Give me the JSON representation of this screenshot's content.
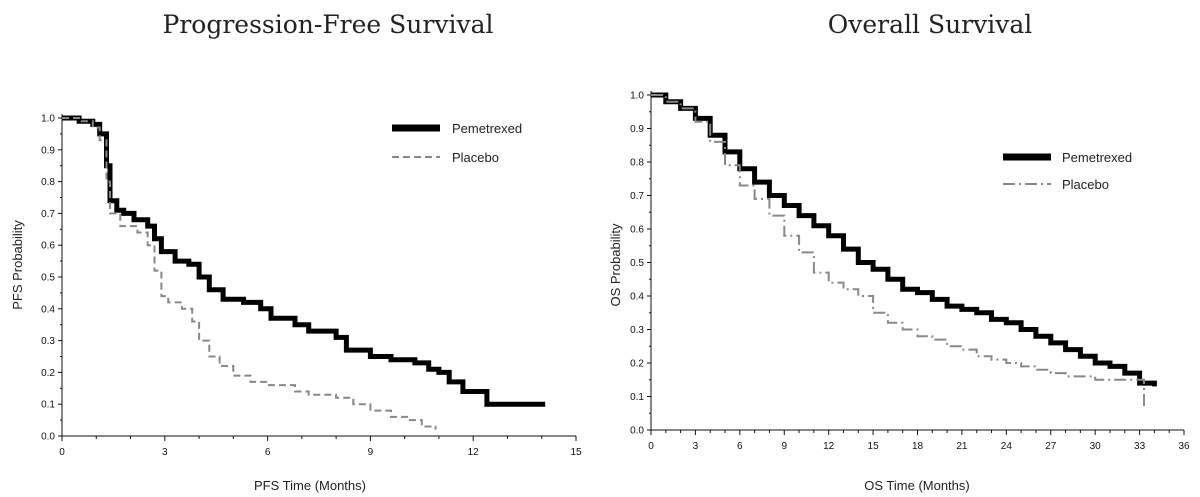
{
  "chart_data": [
    {
      "type": "line",
      "title": "Progression-Free Survival",
      "xlabel": "PFS Time (Months)",
      "ylabel": "PFS Probability",
      "xlim": [
        0,
        15
      ],
      "ylim": [
        0,
        1.0
      ],
      "xticks": [
        "0",
        "3",
        "6",
        "9",
        "12",
        "15"
      ],
      "yticks": [
        "0.0",
        "0.1",
        "0.2",
        "0.3",
        "0.4",
        "0.5",
        "0.6",
        "0.7",
        "0.8",
        "0.9",
        "1.0"
      ],
      "grid": false,
      "legend_position": "top-right",
      "series": [
        {
          "name": "Pemetrexed",
          "color": "#000000",
          "style": "solid-thick",
          "x": [
            0,
            0.5,
            0.9,
            1.1,
            1.3,
            1.4,
            1.6,
            1.8,
            2.1,
            2.5,
            2.7,
            2.9,
            3.3,
            3.7,
            4.0,
            4.3,
            4.7,
            5.3,
            5.8,
            6.1,
            6.8,
            7.2,
            8.0,
            8.3,
            9.0,
            9.6,
            10.3,
            10.7,
            11.0,
            11.3,
            11.7,
            12.4,
            14.1
          ],
          "y": [
            1.0,
            0.99,
            0.98,
            0.95,
            0.85,
            0.74,
            0.71,
            0.7,
            0.68,
            0.66,
            0.62,
            0.58,
            0.55,
            0.54,
            0.5,
            0.46,
            0.43,
            0.42,
            0.4,
            0.37,
            0.35,
            0.33,
            0.31,
            0.27,
            0.25,
            0.24,
            0.23,
            0.21,
            0.2,
            0.17,
            0.14,
            0.1,
            0.1
          ]
        },
        {
          "name": "Placebo",
          "color": "#888888",
          "style": "dashed",
          "x": [
            0,
            0.5,
            0.9,
            1.1,
            1.3,
            1.4,
            1.7,
            2.2,
            2.5,
            2.7,
            2.9,
            3.1,
            3.5,
            3.8,
            4.0,
            4.3,
            4.6,
            5.0,
            5.5,
            6.0,
            6.8,
            7.2,
            8.0,
            8.5,
            9.0,
            9.6,
            10.1,
            10.5,
            10.9
          ],
          "y": [
            1.0,
            0.99,
            0.97,
            0.93,
            0.8,
            0.7,
            0.66,
            0.64,
            0.6,
            0.52,
            0.44,
            0.42,
            0.4,
            0.36,
            0.3,
            0.25,
            0.22,
            0.19,
            0.17,
            0.16,
            0.14,
            0.13,
            0.12,
            0.1,
            0.08,
            0.06,
            0.05,
            0.03,
            0.02
          ]
        }
      ]
    },
    {
      "type": "line",
      "title": "Overall Survival",
      "xlabel": "OS Time (Months)",
      "ylabel": "OS Probability",
      "xlim": [
        0,
        36
      ],
      "ylim": [
        0,
        1.0
      ],
      "xticks": [
        "0",
        "3",
        "6",
        "9",
        "12",
        "15",
        "18",
        "21",
        "24",
        "27",
        "30",
        "33",
        "36"
      ],
      "yticks": [
        "0.0",
        "0.1",
        "0.2",
        "0.3",
        "0.4",
        "0.5",
        "0.6",
        "0.7",
        "0.8",
        "0.9",
        "1.0"
      ],
      "grid": false,
      "legend_position": "top-right",
      "series": [
        {
          "name": "Pemetrexed",
          "color": "#000000",
          "style": "solid-thick",
          "x": [
            0,
            1,
            2,
            3,
            4,
            5,
            6,
            7,
            8,
            9,
            10,
            11,
            12,
            13,
            14,
            15,
            16,
            17,
            18,
            19,
            20,
            21,
            22,
            23,
            24,
            25,
            26,
            27,
            28,
            29,
            30,
            31,
            32,
            33,
            34
          ],
          "y": [
            1.0,
            0.98,
            0.96,
            0.93,
            0.88,
            0.83,
            0.78,
            0.74,
            0.7,
            0.67,
            0.64,
            0.61,
            0.58,
            0.54,
            0.5,
            0.48,
            0.45,
            0.42,
            0.41,
            0.39,
            0.37,
            0.36,
            0.35,
            0.33,
            0.32,
            0.3,
            0.28,
            0.26,
            0.24,
            0.22,
            0.2,
            0.19,
            0.17,
            0.14,
            0.13
          ]
        },
        {
          "name": "Placebo",
          "color": "#888888",
          "style": "dash-dot",
          "x": [
            0,
            1,
            2,
            3,
            4,
            5,
            6,
            7,
            8,
            9,
            10,
            11,
            12,
            13,
            14,
            15,
            16,
            17,
            18,
            19,
            20,
            21,
            22,
            23,
            24,
            25,
            26,
            27,
            28,
            29,
            30,
            31,
            32,
            33,
            33.3
          ],
          "y": [
            1.0,
            0.98,
            0.96,
            0.92,
            0.86,
            0.79,
            0.73,
            0.69,
            0.64,
            0.58,
            0.53,
            0.47,
            0.44,
            0.42,
            0.4,
            0.35,
            0.32,
            0.3,
            0.28,
            0.27,
            0.25,
            0.24,
            0.22,
            0.21,
            0.2,
            0.19,
            0.18,
            0.17,
            0.16,
            0.16,
            0.15,
            0.15,
            0.15,
            0.15,
            0.07
          ]
        }
      ]
    }
  ]
}
